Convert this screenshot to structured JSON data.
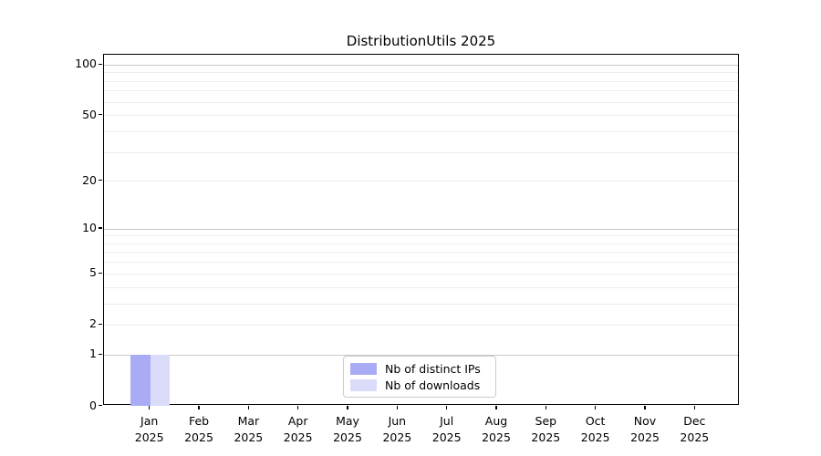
{
  "chart_data": {
    "type": "bar",
    "title": "DistributionUtils 2025",
    "xlabel": "",
    "ylabel": "",
    "months": [
      "Jan",
      "Feb",
      "Mar",
      "Apr",
      "May",
      "Jun",
      "Jul",
      "Aug",
      "Sep",
      "Oct",
      "Nov",
      "Dec"
    ],
    "year_label": "2025",
    "series": [
      {
        "name": "Nb of distinct IPs",
        "color": "#a9acf5",
        "values": [
          1,
          0,
          0,
          0,
          0,
          0,
          0,
          0,
          0,
          0,
          0,
          0
        ]
      },
      {
        "name": "Nb of downloads",
        "color": "#dbdcf9",
        "values": [
          1,
          0,
          0,
          0,
          0,
          0,
          0,
          0,
          0,
          0,
          0,
          0
        ]
      }
    ],
    "y_axis": {
      "scale": "log1p",
      "ticks": [
        0,
        1,
        2,
        5,
        10,
        20,
        50,
        100
      ],
      "max": 114,
      "major_gridlines": [
        1,
        10,
        100
      ],
      "minor_gridlines": [
        2,
        3,
        4,
        5,
        6,
        7,
        8,
        9,
        20,
        30,
        40,
        50,
        60,
        70,
        80,
        90
      ]
    },
    "legend": {
      "position": "lower center",
      "entries": [
        "Nb of distinct IPs",
        "Nb of downloads"
      ]
    },
    "colors": {
      "background": "#ffffff",
      "axis": "#000000",
      "text": "#000000",
      "major_grid": "#c8c8c8",
      "minor_grid": "#ececec"
    }
  }
}
